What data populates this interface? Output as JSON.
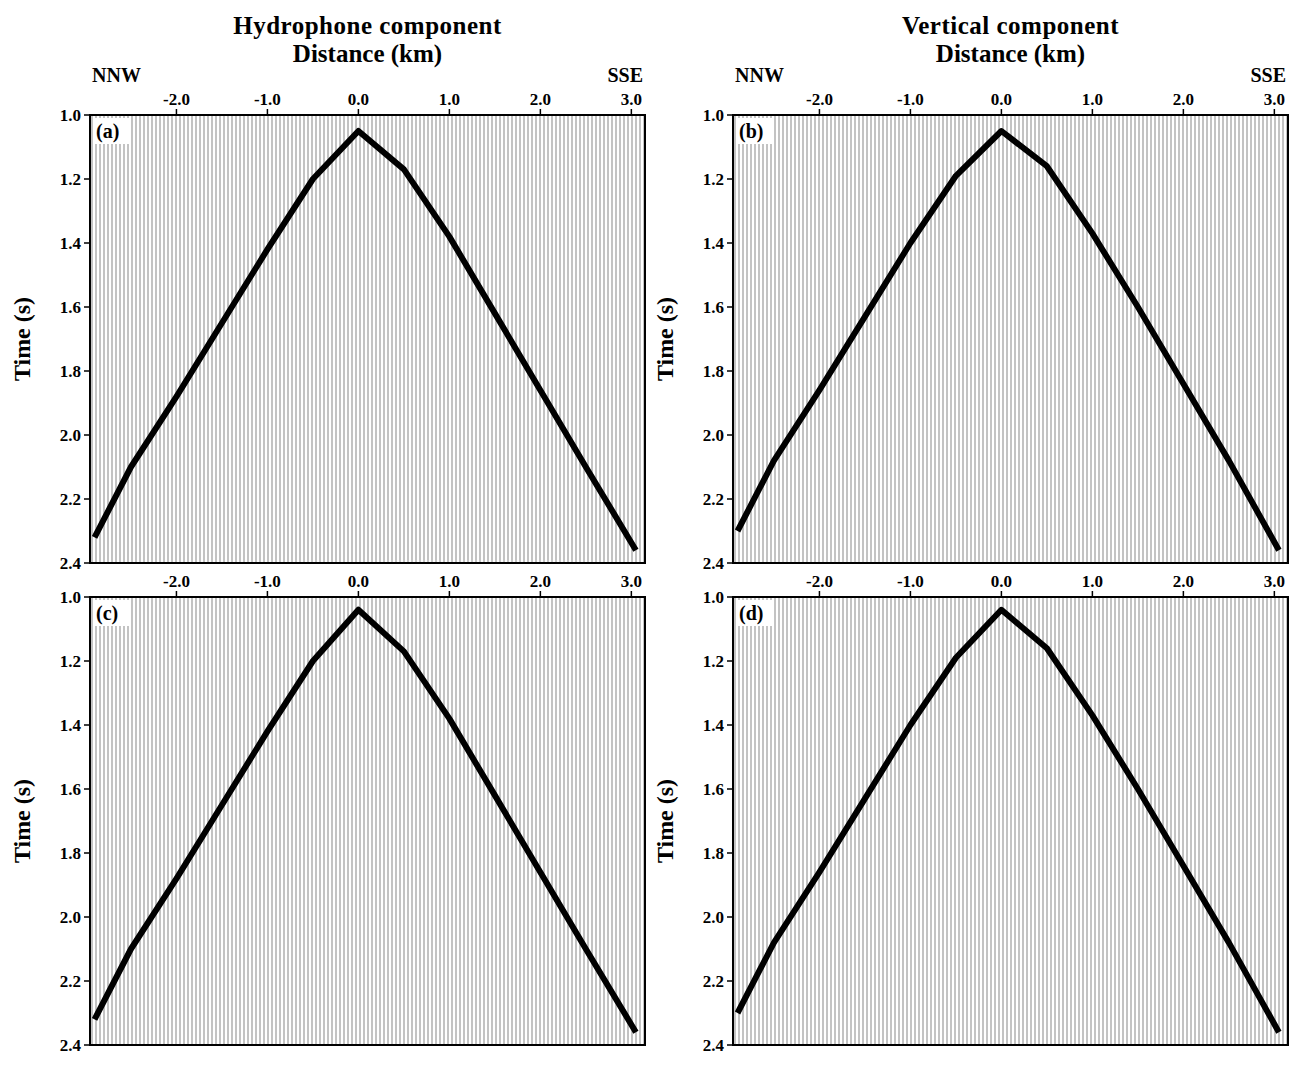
{
  "chart_data": [
    {
      "type": "wiggle",
      "title": "Hydrophone component",
      "x_label": "Distance (km)",
      "y_label": "Time (s)",
      "annotations": [
        "(a)",
        "NNW",
        "SSE"
      ],
      "x": [
        -2.9,
        -2.5,
        -2.0,
        -1.5,
        -1.0,
        -0.5,
        0.0,
        0.5,
        1.0,
        1.5,
        2.0,
        2.5,
        3.05
      ],
      "values": [
        2.32,
        2.1,
        1.88,
        1.65,
        1.42,
        1.2,
        1.05,
        1.17,
        1.38,
        1.62,
        1.86,
        2.1,
        2.36
      ],
      "color": "#000000",
      "xlim": [
        -2.95,
        3.15
      ],
      "xticks": [
        {
          "value": -2,
          "label": "-2.0"
        },
        {
          "value": -1,
          "label": "-1.0"
        },
        {
          "value": 0,
          "label": "0.0"
        },
        {
          "value": 1,
          "label": "1.0"
        },
        {
          "value": 2,
          "label": "2.0"
        },
        {
          "value": 3,
          "label": "3.0"
        }
      ],
      "ylim": [
        1.0,
        2.4
      ],
      "yticks": [
        {
          "value": 1,
          "label": "1.0"
        },
        1.2,
        1.4,
        1.6,
        1.8,
        {
          "value": 2,
          "label": "2.0"
        },
        2.2,
        2.4
      ]
    },
    {
      "type": "wiggle",
      "title": "Vertical component",
      "x_label": "Distance (km)",
      "y_label": "Time (s)",
      "annotations": [
        "(b)",
        "NNW",
        "SSE"
      ],
      "x": [
        -2.9,
        -2.5,
        -2.0,
        -1.5,
        -1.0,
        -0.5,
        0.0,
        0.5,
        1.0,
        1.5,
        2.0,
        2.5,
        3.05
      ],
      "values": [
        2.3,
        2.08,
        1.86,
        1.63,
        1.4,
        1.19,
        1.05,
        1.16,
        1.37,
        1.6,
        1.84,
        2.08,
        2.36
      ],
      "color": "#000000",
      "xlim": [
        -2.95,
        3.15
      ],
      "xticks": [
        {
          "value": -2,
          "label": "-2.0"
        },
        {
          "value": -1,
          "label": "-1.0"
        },
        {
          "value": 0,
          "label": "0.0"
        },
        {
          "value": 1,
          "label": "1.0"
        },
        {
          "value": 2,
          "label": "2.0"
        },
        {
          "value": 3,
          "label": "3.0"
        }
      ],
      "ylim": [
        1.0,
        2.4
      ],
      "yticks": [
        {
          "value": 1,
          "label": "1.0"
        },
        1.2,
        1.4,
        1.6,
        1.8,
        {
          "value": 2,
          "label": "2.0"
        },
        2.2,
        2.4
      ]
    },
    {
      "type": "wiggle",
      "y_label": "Time (s)",
      "annotations": [
        "(c)"
      ],
      "x": [
        -2.9,
        -2.5,
        -2.0,
        -1.5,
        -1.0,
        -0.5,
        0.0,
        0.5,
        1.0,
        1.5,
        2.0,
        2.5,
        3.05
      ],
      "values": [
        2.32,
        2.1,
        1.88,
        1.65,
        1.42,
        1.2,
        1.04,
        1.17,
        1.38,
        1.62,
        1.86,
        2.1,
        2.36
      ],
      "color": "#000000",
      "xlim": [
        -2.95,
        3.15
      ],
      "xticks": [
        {
          "value": -2,
          "label": "-2.0"
        },
        {
          "value": -1,
          "label": "-1.0"
        },
        {
          "value": 0,
          "label": "0.0"
        },
        {
          "value": 1,
          "label": "1.0"
        },
        {
          "value": 2,
          "label": "2.0"
        },
        {
          "value": 3,
          "label": "3.0"
        }
      ],
      "ylim": [
        1.0,
        2.4
      ],
      "yticks": [
        {
          "value": 1,
          "label": "1.0"
        },
        1.2,
        1.4,
        1.6,
        1.8,
        {
          "value": 2,
          "label": "2.0"
        },
        2.2,
        2.4
      ]
    },
    {
      "type": "wiggle",
      "y_label": "Time (s)",
      "annotations": [
        "(d)"
      ],
      "x": [
        -2.9,
        -2.5,
        -2.0,
        -1.5,
        -1.0,
        -0.5,
        0.0,
        0.5,
        1.0,
        1.5,
        2.0,
        2.5,
        3.05
      ],
      "values": [
        2.3,
        2.08,
        1.86,
        1.63,
        1.4,
        1.19,
        1.04,
        1.16,
        1.37,
        1.6,
        1.84,
        2.08,
        2.36
      ],
      "color": "#000000",
      "xlim": [
        -2.95,
        3.15
      ],
      "xticks": [
        {
          "value": -2,
          "label": "-2.0"
        },
        {
          "value": -1,
          "label": "-1.0"
        },
        {
          "value": 0,
          "label": "0.0"
        },
        {
          "value": 1,
          "label": "1.0"
        },
        {
          "value": 2,
          "label": "2.0"
        },
        {
          "value": 3,
          "label": "3.0"
        }
      ],
      "ylim": [
        1.0,
        2.4
      ],
      "yticks": [
        {
          "value": 1,
          "label": "1.0"
        },
        1.2,
        1.4,
        1.6,
        1.8,
        {
          "value": 2,
          "label": "2.0"
        },
        2.2,
        2.4
      ]
    }
  ]
}
